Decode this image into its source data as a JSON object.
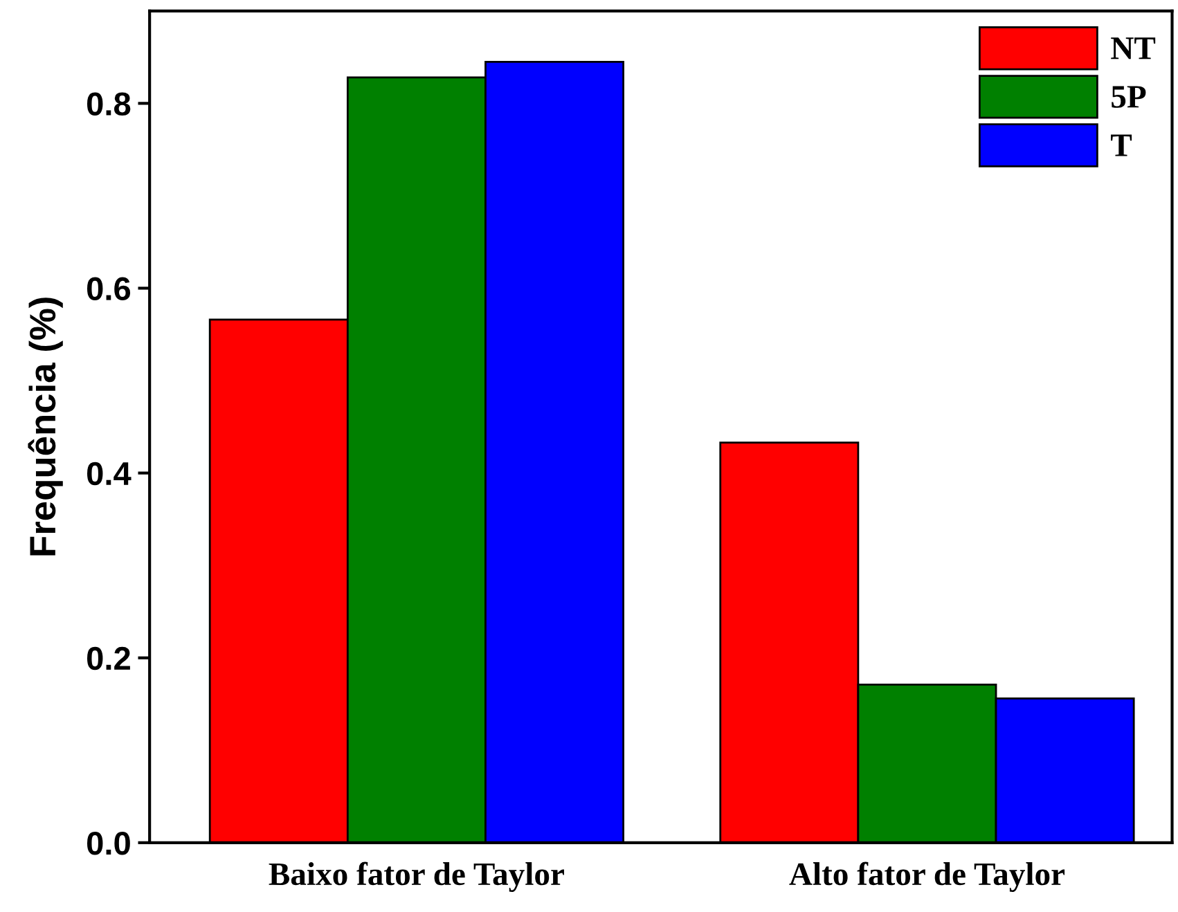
{
  "chart_data": {
    "type": "bar",
    "ylabel": "Frequência (%)",
    "categories": [
      "Baixo fator de Taylor",
      "Alto fator de Taylor"
    ],
    "series": [
      {
        "name": "NT",
        "color": "#ff0000",
        "values": [
          0.566,
          0.433
        ]
      },
      {
        "name": "5P",
        "color": "#008000",
        "values": [
          0.828,
          0.171
        ]
      },
      {
        "name": "T",
        "color": "#0000ff",
        "values": [
          0.845,
          0.156
        ]
      }
    ],
    "ylim": [
      0,
      0.9
    ],
    "yticks": [
      {
        "value": 0,
        "label": "0.0"
      },
      0.2,
      0.4,
      0.6,
      0.8
    ],
    "grid": false,
    "legend": "top right"
  }
}
